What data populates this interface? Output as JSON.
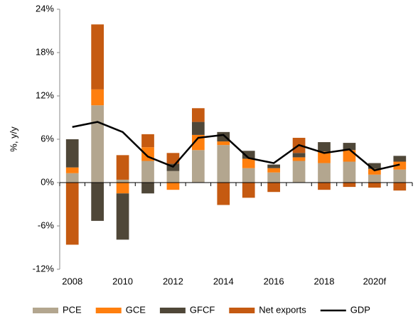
{
  "chart_data": {
    "type": "bar",
    "stacked": true,
    "y_label": "%, y/y",
    "categories": [
      "2008",
      null,
      "2010",
      null,
      "2012",
      null,
      "2014",
      null,
      "2016",
      null,
      "2018",
      null,
      "2020f",
      null
    ],
    "series": [
      {
        "name": "PCE",
        "color": "#b3a68f",
        "values": [
          1.3,
          10.7,
          0.4,
          3.0,
          1.6,
          4.5,
          5.2,
          2.0,
          1.4,
          3.0,
          2.7,
          2.9,
          1.1,
          1.8
        ]
      },
      {
        "name": "GCE",
        "color": "#ff7f0e",
        "values": [
          0.8,
          2.2,
          -1.5,
          1.9,
          -1.0,
          2.1,
          0.5,
          1.3,
          0.6,
          0.5,
          1.6,
          1.6,
          0.8,
          1.1
        ]
      },
      {
        "name": "GFCF",
        "color": "#4f4738",
        "values": [
          3.9,
          -5.3,
          -6.4,
          -1.5,
          1.0,
          1.8,
          1.3,
          1.1,
          0.5,
          0.6,
          1.3,
          1.0,
          0.8,
          0.8
        ]
      },
      {
        "name": "Net exports",
        "color": "#c55a11",
        "values": [
          -8.6,
          9.0,
          3.4,
          1.8,
          1.5,
          1.9,
          -3.1,
          -2.1,
          -1.3,
          2.1,
          -1.0,
          -0.6,
          -0.7,
          -1.1
        ]
      },
      {
        "name": "GDP",
        "type": "line",
        "color": "#000000",
        "values": [
          7.7,
          8.4,
          7.0,
          3.6,
          2.2,
          6.2,
          6.6,
          3.4,
          2.7,
          5.2,
          4.1,
          4.6,
          1.7,
          2.5
        ]
      }
    ],
    "ylim": [
      -12,
      24
    ],
    "yticks": [
      {
        "value": -12,
        "label": "-12%"
      },
      {
        "value": -6,
        "label": "-6%"
      },
      {
        "value": 0,
        "label": "0%"
      },
      {
        "value": 6,
        "label": "6%"
      },
      {
        "value": 12,
        "label": "12%"
      },
      {
        "value": 18,
        "label": "18%"
      },
      {
        "value": 24,
        "label": "24%"
      }
    ],
    "grid": false,
    "legend": "bottom"
  }
}
